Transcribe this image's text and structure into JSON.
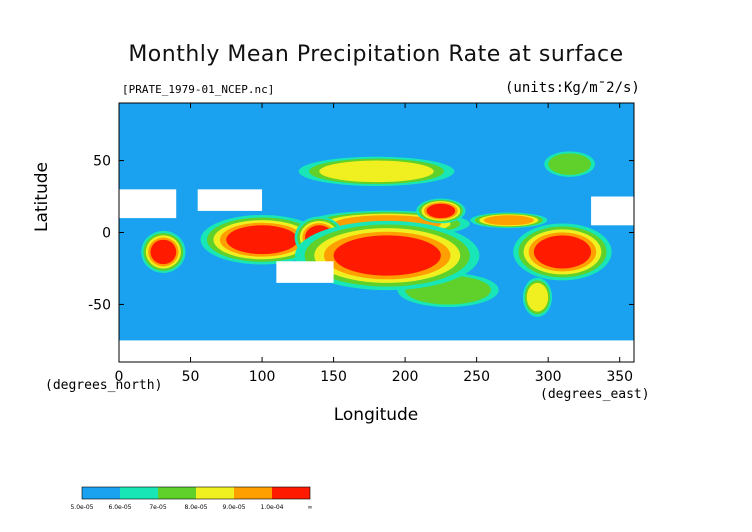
{
  "chart_data": {
    "type": "heatmap",
    "title": "Monthly Mean Precipitation Rate at surface",
    "subtitle": "[PRATE_1979-01_NCEP.nc]",
    "units": "(units:Kg/m¯2/s)",
    "xlabel": "Longitude",
    "ylabel": "Latitude",
    "x_unit_label": "(degrees_east)",
    "y_unit_label": "(degrees_north)",
    "xlim": [
      0,
      360
    ],
    "ylim": [
      -90,
      90
    ],
    "x_ticks": [
      0,
      50,
      100,
      150,
      200,
      250,
      300,
      350
    ],
    "y_ticks": [
      -50,
      0,
      50
    ],
    "colorbar": {
      "labels": [
        "5.0e-05",
        "6.0e-05",
        "7e-05",
        "8.0e-05",
        "9.0e-05",
        "1.0e-04",
        "∞"
      ],
      "colors": [
        "#1aa1ef",
        "#18e6b6",
        "#5fd12a",
        "#f0f020",
        "#ff9f00",
        "#ff1a00"
      ]
    },
    "regions": [
      {
        "level": 5,
        "lon": [
          215,
          235
        ],
        "lat": [
          10,
          20
        ]
      },
      {
        "level": 5,
        "lon": [
          75,
          125
        ],
        "lat": [
          -15,
          5
        ]
      },
      {
        "level": 5,
        "lon": [
          130,
          150
        ],
        "lat": [
          -12,
          5
        ]
      },
      {
        "level": 5,
        "lon": [
          150,
          225
        ],
        "lat": [
          -30,
          -2
        ]
      },
      {
        "level": 5,
        "lon": [
          290,
          330
        ],
        "lat": [
          -25,
          -2
        ]
      },
      {
        "level": 5,
        "lon": [
          22,
          40
        ],
        "lat": [
          -22,
          -5
        ]
      },
      {
        "level": 4,
        "lon": [
          150,
          225
        ],
        "lat": [
          0,
          12
        ]
      },
      {
        "level": 4,
        "lon": [
          255,
          290
        ],
        "lat": [
          5,
          12
        ]
      },
      {
        "level": 3,
        "lon": [
          285,
          300
        ],
        "lat": [
          -55,
          -35
        ]
      },
      {
        "level": 3,
        "lon": [
          140,
          220
        ],
        "lat": [
          35,
          50
        ]
      },
      {
        "level": 2,
        "lon": [
          200,
          260
        ],
        "lat": [
          -50,
          -30
        ]
      },
      {
        "level": 2,
        "lon": [
          300,
          330
        ],
        "lat": [
          40,
          55
        ]
      }
    ],
    "no_data_regions": [
      {
        "lon": [
          0,
          40
        ],
        "lat": [
          10,
          30
        ]
      },
      {
        "lon": [
          55,
          100
        ],
        "lat": [
          15,
          30
        ]
      },
      {
        "lon": [
          110,
          150
        ],
        "lat": [
          -35,
          -20
        ]
      },
      {
        "lon": [
          0,
          360
        ],
        "lat": [
          -90,
          -75
        ]
      },
      {
        "lon": [
          330,
          360
        ],
        "lat": [
          5,
          25
        ]
      }
    ]
  }
}
